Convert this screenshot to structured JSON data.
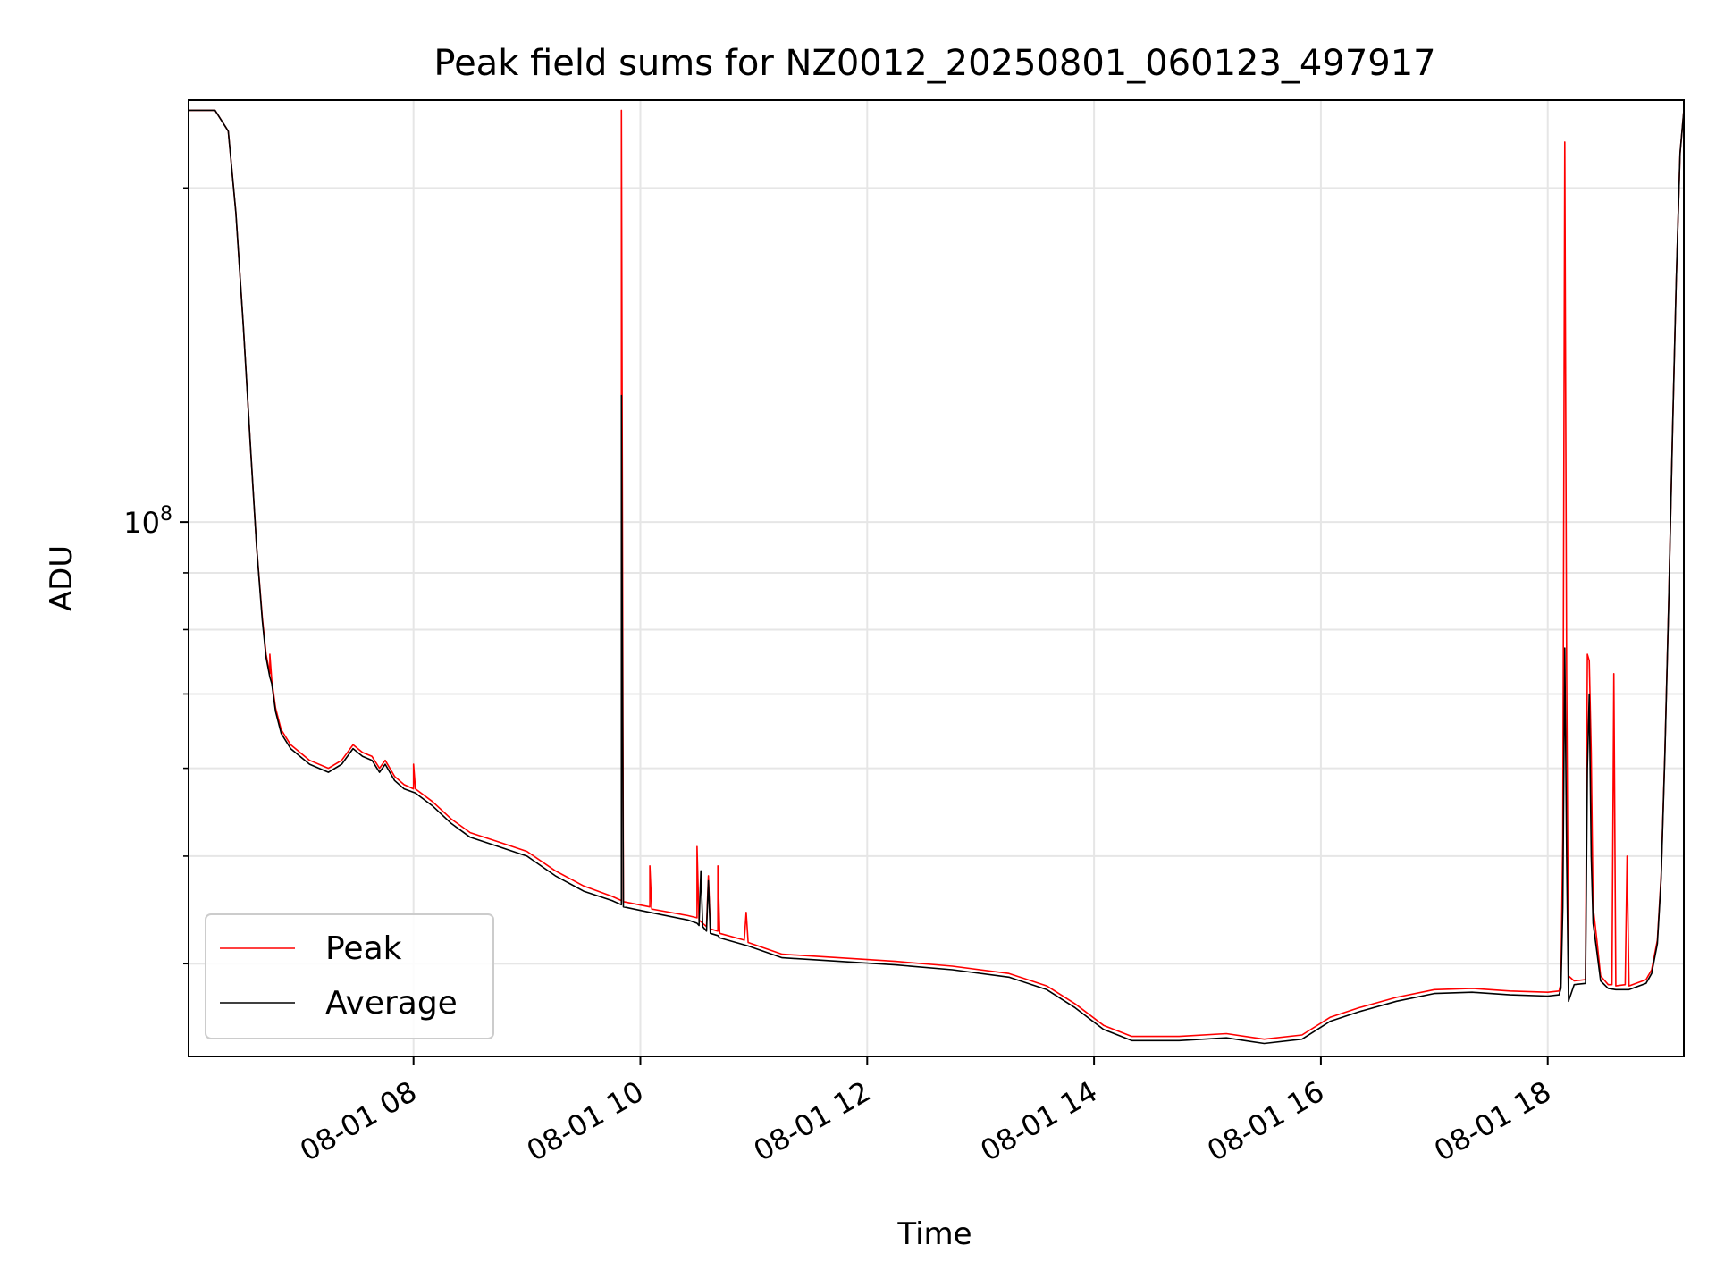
{
  "chart_data": {
    "type": "line",
    "title": "Peak field sums for NZ0012_20250801_060123_497917",
    "xlabel": "Time",
    "ylabel": "ADU",
    "y_scale": "log",
    "ylim": [
      33000000,
      240000000
    ],
    "xlim": [
      "2025-08-01 06:01",
      "2025-08-01 19:12"
    ],
    "x_ticks": [
      "2025-08-01 08:00",
      "2025-08-01 10:00",
      "2025-08-01 12:00",
      "2025-08-01 14:00",
      "2025-08-01 16:00",
      "2025-08-01 18:00"
    ],
    "x_tick_labels": [
      "08-01 08",
      "08-01 10",
      "08-01 12",
      "08-01 14",
      "08-01 16",
      "08-01 18"
    ],
    "y_tick_base": "10",
    "y_tick_exponent": "8",
    "y_tick_value": 100000000,
    "grid": true,
    "legend_position": "lower-left",
    "colors": {
      "peak": "#ff0000",
      "average": "#000000"
    },
    "series": [
      {
        "name": "Peak",
        "color": "#ff0000",
        "points": [
          [
            "2025-08-01 06:01",
            235000000
          ],
          [
            "2025-08-01 06:15",
            235000000
          ],
          [
            "2025-08-01 06:22",
            225000000
          ],
          [
            "2025-08-01 06:26",
            190000000
          ],
          [
            "2025-08-01 06:30",
            150000000
          ],
          [
            "2025-08-01 06:34",
            115000000
          ],
          [
            "2025-08-01 06:37",
            95000000
          ],
          [
            "2025-08-01 06:40",
            82000000
          ],
          [
            "2025-08-01 06:42",
            76000000
          ],
          [
            "2025-08-01 06:44",
            73000000
          ],
          [
            "2025-08-01 06:44",
            76000000
          ],
          [
            "2025-08-01 06:45",
            72000000
          ],
          [
            "2025-08-01 06:47",
            68000000
          ],
          [
            "2025-08-01 06:50",
            65000000
          ],
          [
            "2025-08-01 06:55",
            63000000
          ],
          [
            "2025-08-01 07:05",
            61000000
          ],
          [
            "2025-08-01 07:15",
            60000000
          ],
          [
            "2025-08-01 07:22",
            61000000
          ],
          [
            "2025-08-01 07:28",
            63000000
          ],
          [
            "2025-08-01 07:33",
            62000000
          ],
          [
            "2025-08-01 07:38",
            61500000
          ],
          [
            "2025-08-01 07:42",
            60000000
          ],
          [
            "2025-08-01 07:45",
            61000000
          ],
          [
            "2025-08-01 07:50",
            59000000
          ],
          [
            "2025-08-01 07:55",
            58000000
          ],
          [
            "2025-08-01 08:00",
            57500000
          ],
          [
            "2025-08-01 08:00",
            60500000
          ],
          [
            "2025-08-01 08:01",
            57500000
          ],
          [
            "2025-08-01 08:10",
            56000000
          ],
          [
            "2025-08-01 08:20",
            54000000
          ],
          [
            "2025-08-01 08:30",
            52500000
          ],
          [
            "2025-08-01 08:45",
            51500000
          ],
          [
            "2025-08-01 09:00",
            50500000
          ],
          [
            "2025-08-01 09:15",
            48500000
          ],
          [
            "2025-08-01 09:30",
            47000000
          ],
          [
            "2025-08-01 09:45",
            46000000
          ],
          [
            "2025-08-01 09:50",
            45600000
          ],
          [
            "2025-08-01 09:50",
            235000000
          ],
          [
            "2025-08-01 09:51",
            45500000
          ],
          [
            "2025-08-01 10:05",
            45000000
          ],
          [
            "2025-08-01 10:05",
            49000000
          ],
          [
            "2025-08-01 10:06",
            44800000
          ],
          [
            "2025-08-01 10:25",
            44200000
          ],
          [
            "2025-08-01 10:30",
            44000000
          ],
          [
            "2025-08-01 10:30",
            51000000
          ],
          [
            "2025-08-01 10:31",
            43800000
          ],
          [
            "2025-08-01 10:35",
            43200000
          ],
          [
            "2025-08-01 10:36",
            48000000
          ],
          [
            "2025-08-01 10:37",
            43000000
          ],
          [
            "2025-08-01 10:41",
            42800000
          ],
          [
            "2025-08-01 10:41",
            49000000
          ],
          [
            "2025-08-01 10:42",
            42600000
          ],
          [
            "2025-08-01 10:55",
            42000000
          ],
          [
            "2025-08-01 10:56",
            44500000
          ],
          [
            "2025-08-01 10:57",
            41800000
          ],
          [
            "2025-08-01 11:15",
            40800000
          ],
          [
            "2025-08-01 11:45",
            40500000
          ],
          [
            "2025-08-01 12:15",
            40200000
          ],
          [
            "2025-08-01 12:45",
            39800000
          ],
          [
            "2025-08-01 13:15",
            39200000
          ],
          [
            "2025-08-01 13:35",
            38200000
          ],
          [
            "2025-08-01 13:50",
            36800000
          ],
          [
            "2025-08-01 14:05",
            35200000
          ],
          [
            "2025-08-01 14:20",
            34400000
          ],
          [
            "2025-08-01 14:45",
            34400000
          ],
          [
            "2025-08-01 15:10",
            34600000
          ],
          [
            "2025-08-01 15:30",
            34200000
          ],
          [
            "2025-08-01 15:50",
            34500000
          ],
          [
            "2025-08-01 16:05",
            35800000
          ],
          [
            "2025-08-01 16:20",
            36500000
          ],
          [
            "2025-08-01 16:40",
            37300000
          ],
          [
            "2025-08-01 17:00",
            37900000
          ],
          [
            "2025-08-01 17:20",
            38000000
          ],
          [
            "2025-08-01 17:40",
            37800000
          ],
          [
            "2025-08-01 18:00",
            37700000
          ],
          [
            "2025-08-01 18:06",
            37800000
          ],
          [
            "2025-08-01 18:07",
            38400000
          ],
          [
            "2025-08-01 18:08",
            52000000
          ],
          [
            "2025-08-01 18:09",
            220000000
          ],
          [
            "2025-08-01 18:10",
            73000000
          ],
          [
            "2025-08-01 18:11",
            39000000
          ],
          [
            "2025-08-01 18:14",
            38600000
          ],
          [
            "2025-08-01 18:20",
            38700000
          ],
          [
            "2025-08-01 18:21",
            76000000
          ],
          [
            "2025-08-01 18:22",
            75000000
          ],
          [
            "2025-08-01 18:23",
            62000000
          ],
          [
            "2025-08-01 18:24",
            45000000
          ],
          [
            "2025-08-01 18:26",
            42000000
          ],
          [
            "2025-08-01 18:28",
            39000000
          ],
          [
            "2025-08-01 18:32",
            38300000
          ],
          [
            "2025-08-01 18:34",
            38300000
          ],
          [
            "2025-08-01 18:35",
            73000000
          ],
          [
            "2025-08-01 18:36",
            38200000
          ],
          [
            "2025-08-01 18:41",
            38300000
          ],
          [
            "2025-08-01 18:42",
            50000000
          ],
          [
            "2025-08-01 18:43",
            38200000
          ],
          [
            "2025-08-01 18:52",
            38700000
          ],
          [
            "2025-08-01 18:55",
            39500000
          ],
          [
            "2025-08-01 18:58",
            42000000
          ],
          [
            "2025-08-01 19:00",
            48000000
          ],
          [
            "2025-08-01 19:02",
            62000000
          ],
          [
            "2025-08-01 19:04",
            85000000
          ],
          [
            "2025-08-01 19:06",
            120000000
          ],
          [
            "2025-08-01 19:08",
            165000000
          ],
          [
            "2025-08-01 19:10",
            215000000
          ],
          [
            "2025-08-01 19:12",
            235000000
          ]
        ]
      },
      {
        "name": "Average",
        "color": "#000000",
        "points": [
          [
            "2025-08-01 06:01",
            235000000
          ],
          [
            "2025-08-01 06:15",
            235000000
          ],
          [
            "2025-08-01 06:22",
            225000000
          ],
          [
            "2025-08-01 06:26",
            190000000
          ],
          [
            "2025-08-01 06:30",
            150000000
          ],
          [
            "2025-08-01 06:34",
            115000000
          ],
          [
            "2025-08-01 06:37",
            95000000
          ],
          [
            "2025-08-01 06:40",
            81500000
          ],
          [
            "2025-08-01 06:42",
            75500000
          ],
          [
            "2025-08-01 06:44",
            72500000
          ],
          [
            "2025-08-01 06:45",
            71500000
          ],
          [
            "2025-08-01 06:47",
            67500000
          ],
          [
            "2025-08-01 06:50",
            64500000
          ],
          [
            "2025-08-01 06:55",
            62500000
          ],
          [
            "2025-08-01 07:05",
            60500000
          ],
          [
            "2025-08-01 07:15",
            59500000
          ],
          [
            "2025-08-01 07:22",
            60500000
          ],
          [
            "2025-08-01 07:28",
            62500000
          ],
          [
            "2025-08-01 07:33",
            61500000
          ],
          [
            "2025-08-01 07:38",
            61000000
          ],
          [
            "2025-08-01 07:42",
            59500000
          ],
          [
            "2025-08-01 07:45",
            60500000
          ],
          [
            "2025-08-01 07:50",
            58500000
          ],
          [
            "2025-08-01 07:55",
            57500000
          ],
          [
            "2025-08-01 08:01",
            57000000
          ],
          [
            "2025-08-01 08:10",
            55500000
          ],
          [
            "2025-08-01 08:20",
            53500000
          ],
          [
            "2025-08-01 08:30",
            52000000
          ],
          [
            "2025-08-01 08:45",
            51000000
          ],
          [
            "2025-08-01 09:00",
            50000000
          ],
          [
            "2025-08-01 09:15",
            48000000
          ],
          [
            "2025-08-01 09:30",
            46500000
          ],
          [
            "2025-08-01 09:45",
            45600000
          ],
          [
            "2025-08-01 09:50",
            45200000
          ],
          [
            "2025-08-01 09:50",
            130000000
          ],
          [
            "2025-08-01 09:51",
            45000000
          ],
          [
            "2025-08-01 10:05",
            44500000
          ],
          [
            "2025-08-01 10:25",
            43800000
          ],
          [
            "2025-08-01 10:30",
            43500000
          ],
          [
            "2025-08-01 10:31",
            43300000
          ],
          [
            "2025-08-01 10:32",
            48500000
          ],
          [
            "2025-08-01 10:33",
            43200000
          ],
          [
            "2025-08-01 10:35",
            42800000
          ],
          [
            "2025-08-01 10:36",
            47500000
          ],
          [
            "2025-08-01 10:37",
            42600000
          ],
          [
            "2025-08-01 10:41",
            42400000
          ],
          [
            "2025-08-01 10:42",
            42200000
          ],
          [
            "2025-08-01 10:57",
            41500000
          ],
          [
            "2025-08-01 11:15",
            40500000
          ],
          [
            "2025-08-01 11:45",
            40200000
          ],
          [
            "2025-08-01 12:15",
            39900000
          ],
          [
            "2025-08-01 12:45",
            39500000
          ],
          [
            "2025-08-01 13:15",
            38900000
          ],
          [
            "2025-08-01 13:35",
            37900000
          ],
          [
            "2025-08-01 13:50",
            36500000
          ],
          [
            "2025-08-01 14:05",
            34900000
          ],
          [
            "2025-08-01 14:20",
            34100000
          ],
          [
            "2025-08-01 14:45",
            34100000
          ],
          [
            "2025-08-01 15:10",
            34300000
          ],
          [
            "2025-08-01 15:30",
            33900000
          ],
          [
            "2025-08-01 15:50",
            34200000
          ],
          [
            "2025-08-01 16:05",
            35500000
          ],
          [
            "2025-08-01 16:20",
            36200000
          ],
          [
            "2025-08-01 16:40",
            37000000
          ],
          [
            "2025-08-01 17:00",
            37600000
          ],
          [
            "2025-08-01 17:20",
            37700000
          ],
          [
            "2025-08-01 17:40",
            37500000
          ],
          [
            "2025-08-01 18:00",
            37400000
          ],
          [
            "2025-08-01 18:06",
            37500000
          ],
          [
            "2025-08-01 18:07",
            38000000
          ],
          [
            "2025-08-01 18:08",
            45000000
          ],
          [
            "2025-08-01 18:09",
            77000000
          ],
          [
            "2025-08-01 18:10",
            50000000
          ],
          [
            "2025-08-01 18:11",
            37000000
          ],
          [
            "2025-08-01 18:14",
            38300000
          ],
          [
            "2025-08-01 18:20",
            38400000
          ],
          [
            "2025-08-01 18:21",
            60000000
          ],
          [
            "2025-08-01 18:22",
            70000000
          ],
          [
            "2025-08-01 18:23",
            50000000
          ],
          [
            "2025-08-01 18:24",
            43500000
          ],
          [
            "2025-08-01 18:26",
            41000000
          ],
          [
            "2025-08-01 18:28",
            38600000
          ],
          [
            "2025-08-01 18:32",
            38000000
          ],
          [
            "2025-08-01 18:36",
            37900000
          ],
          [
            "2025-08-01 18:43",
            37900000
          ],
          [
            "2025-08-01 18:52",
            38400000
          ],
          [
            "2025-08-01 18:55",
            39200000
          ],
          [
            "2025-08-01 18:58",
            41700000
          ],
          [
            "2025-08-01 19:00",
            47700000
          ],
          [
            "2025-08-01 19:02",
            61700000
          ],
          [
            "2025-08-01 19:04",
            84700000
          ],
          [
            "2025-08-01 19:06",
            120000000
          ],
          [
            "2025-08-01 19:08",
            165000000
          ],
          [
            "2025-08-01 19:10",
            215000000
          ],
          [
            "2025-08-01 19:12",
            235000000
          ]
        ]
      }
    ]
  }
}
